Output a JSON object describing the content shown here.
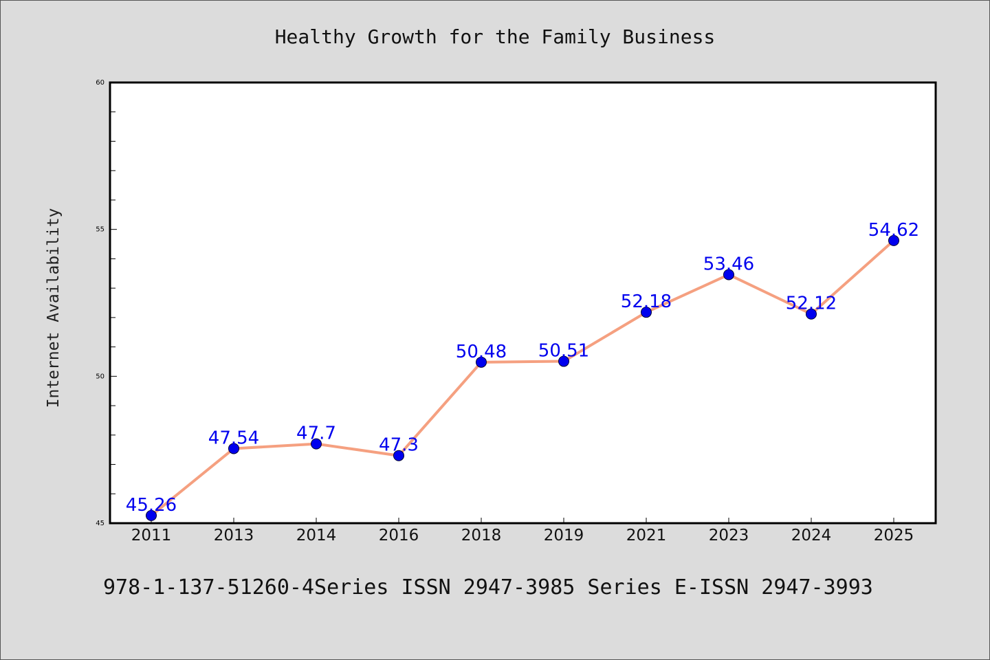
{
  "chart_data": {
    "type": "line",
    "title": "Healthy Growth for the Family Business",
    "xlabel": "",
    "ylabel": "Internet Availability",
    "categories": [
      "2011",
      "2013",
      "2014",
      "2016",
      "2018",
      "2019",
      "2021",
      "2023",
      "2024",
      "2025"
    ],
    "series": [
      {
        "values": [
          45.26,
          47.54,
          47.7,
          47.3,
          50.48,
          50.51,
          52.18,
          53.46,
          52.12,
          54.62
        ],
        "labels": [
          "45.26",
          "47.54",
          "47.7",
          "47.3",
          "50.48",
          "50.51",
          "52.18",
          "53.46",
          "52.12",
          "54.62"
        ]
      }
    ],
    "ylim": [
      45,
      60
    ],
    "yticks": [
      45,
      50,
      55,
      60
    ],
    "grid": false,
    "colors": {
      "line": "#f5a080",
      "marker": "#0000ee",
      "label": "#0000ee"
    }
  },
  "footer": {
    "text": "978-1-137-51260-4Series ISSN 2947-3985 Series E-ISSN 2947-3993"
  }
}
